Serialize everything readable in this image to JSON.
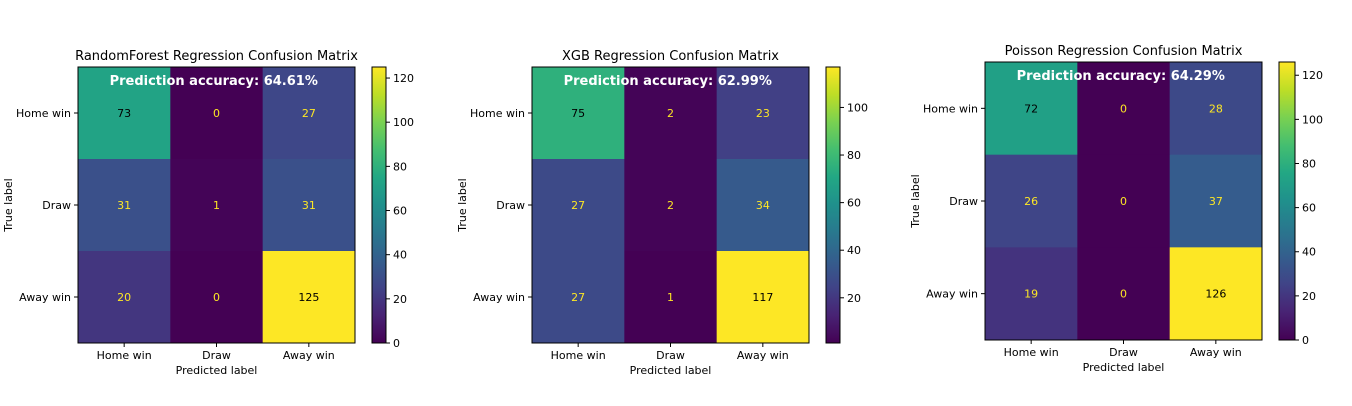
{
  "chart_data": [
    {
      "type": "heatmap",
      "title": "RandomForest Regression Confusion Matrix",
      "annotation": "Prediction accuracy: 64.61%",
      "xlabel": "Predicted label",
      "ylabel": "True label",
      "x_categories": [
        "Home win",
        "Draw",
        "Away win"
      ],
      "y_categories": [
        "Home win",
        "Draw",
        "Away win"
      ],
      "values": [
        [
          73,
          0,
          27
        ],
        [
          31,
          1,
          31
        ],
        [
          20,
          0,
          125
        ]
      ],
      "colorbar": {
        "colormap": "viridis",
        "range": [
          0,
          125
        ],
        "ticks": [
          0,
          20,
          40,
          60,
          80,
          100,
          120
        ]
      }
    },
    {
      "type": "heatmap",
      "title": "XGB Regression Confusion Matrix",
      "annotation": "Prediction accuracy: 62.99%",
      "xlabel": "Predicted label",
      "ylabel": "True label",
      "x_categories": [
        "Home win",
        "Draw",
        "Away win"
      ],
      "y_categories": [
        "Home win",
        "Draw",
        "Away win"
      ],
      "values": [
        [
          75,
          2,
          23
        ],
        [
          27,
          2,
          34
        ],
        [
          27,
          1,
          117
        ]
      ],
      "colorbar": {
        "colormap": "viridis",
        "range": [
          1,
          117
        ],
        "ticks": [
          20,
          40,
          60,
          80,
          100
        ]
      }
    },
    {
      "type": "heatmap",
      "title": "Poisson Regression Confusion Matrix",
      "annotation": "Prediction accuracy: 64.29%",
      "xlabel": "Predicted label",
      "ylabel": "True label",
      "x_categories": [
        "Home win",
        "Draw",
        "Away win"
      ],
      "y_categories": [
        "Home win",
        "Draw",
        "Away win"
      ],
      "values": [
        [
          72,
          0,
          28
        ],
        [
          26,
          0,
          37
        ],
        [
          19,
          0,
          126
        ]
      ],
      "colorbar": {
        "colormap": "viridis",
        "range": [
          0,
          126
        ],
        "ticks": [
          0,
          20,
          40,
          60,
          80,
          100,
          120
        ]
      }
    }
  ]
}
